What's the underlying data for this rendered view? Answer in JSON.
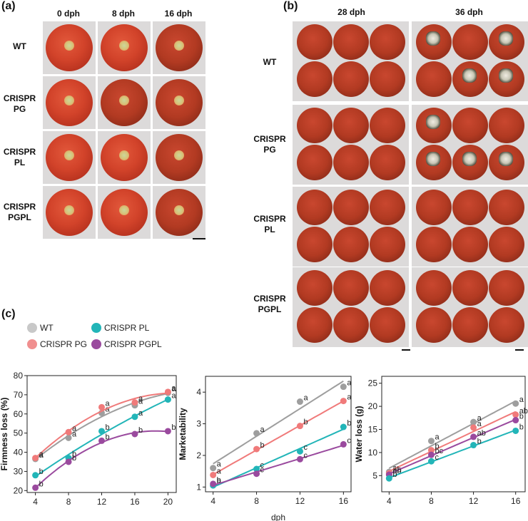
{
  "panels": {
    "a": {
      "label": "(a)",
      "columns": [
        "0 dph",
        "8 dph",
        "16 dph"
      ],
      "rows": [
        {
          "line1": "WT",
          "line2": ""
        },
        {
          "line1": "CRISPR",
          "line2": "PG"
        },
        {
          "line1": "CRISPR",
          "line2": "PL"
        },
        {
          "line1": "CRISPR",
          "line2": "PGPL"
        }
      ]
    },
    "b": {
      "label": "(b)",
      "columns": [
        "28 dph",
        "36 dph"
      ],
      "rows": [
        {
          "line1": "WT",
          "line2": ""
        },
        {
          "line1": "CRISPR",
          "line2": "PG"
        },
        {
          "line1": "CRISPR",
          "line2": "PL"
        },
        {
          "line1": "CRISPR",
          "line2": "PGPL"
        }
      ]
    },
    "c": {
      "label": "(c)",
      "shared_xlabel": "dph"
    }
  },
  "legend": [
    {
      "name": "WT",
      "color": "#9e9e9e"
    },
    {
      "name": "CRISPR PL",
      "color": "#22b5b8"
    },
    {
      "name": "CRISPR PG",
      "color": "#f07a7a"
    },
    {
      "name": "CRISPR PGPL",
      "color": "#9a4a9e"
    }
  ],
  "chart_data": [
    {
      "type": "line",
      "title": "",
      "xlabel": "",
      "ylabel": "Firmness loss (%)",
      "x": [
        4,
        8,
        12,
        16,
        20
      ],
      "xticks": [
        4,
        8,
        12,
        16,
        20
      ],
      "yticks": [
        20,
        30,
        40,
        50,
        60,
        70,
        80
      ],
      "xlim": [
        3,
        21
      ],
      "ylim": [
        19,
        80
      ],
      "fit": "quadratic",
      "series": [
        {
          "name": "WT",
          "color": "#9e9e9e",
          "values": [
            36.5,
            47.5,
            60.5,
            64.5,
            71
          ],
          "letters": [
            "a",
            "a",
            "a",
            "a",
            "a"
          ]
        },
        {
          "name": "CRISPR PG",
          "color": "#f07a7a",
          "values": [
            37,
            50.5,
            63.5,
            66,
            71.5
          ],
          "letters": [
            "a",
            "a",
            "a",
            "a",
            "a"
          ]
        },
        {
          "name": "CRISPR PL",
          "color": "#22b5b8",
          "values": [
            28,
            37,
            51,
            58.5,
            67.5
          ],
          "letters": [
            "b",
            "b",
            "b",
            "a",
            "a"
          ]
        },
        {
          "name": "CRISPR PGPL",
          "color": "#9a4a9e",
          "values": [
            21.5,
            35,
            46,
            49.5,
            51
          ],
          "letters": [
            "b",
            "b",
            "b",
            "b",
            "b"
          ]
        }
      ]
    },
    {
      "type": "line",
      "title": "",
      "xlabel": "dph",
      "ylabel": "Marketability",
      "x": [
        4,
        8,
        12,
        16
      ],
      "xticks": [
        4,
        8,
        12,
        16
      ],
      "yticks": [
        1,
        2,
        3,
        4
      ],
      "xlim": [
        3.3,
        16.7
      ],
      "ylim": [
        0.85,
        4.5
      ],
      "fit": "linear",
      "series": [
        {
          "name": "WT",
          "color": "#9e9e9e",
          "values": [
            1.6,
            2.7,
            3.7,
            4.17
          ],
          "letters": [
            "a",
            "a",
            "a",
            "a"
          ]
        },
        {
          "name": "CRISPR PG",
          "color": "#f07a7a",
          "values": [
            1.38,
            2.2,
            2.93,
            3.72
          ],
          "letters": [
            "a",
            "b",
            "b",
            "a"
          ]
        },
        {
          "name": "CRISPR PL",
          "color": "#22b5b8",
          "values": [
            1.05,
            1.57,
            2.13,
            2.9
          ],
          "letters": [
            "b",
            "c",
            "c",
            "b"
          ]
        },
        {
          "name": "CRISPR PGPL",
          "color": "#9a4a9e",
          "values": [
            1.1,
            1.42,
            1.88,
            2.35
          ],
          "letters": [
            "b",
            "c",
            "c",
            "c"
          ]
        }
      ]
    },
    {
      "type": "line",
      "title": "",
      "xlabel": "",
      "ylabel": "Water loss (g)",
      "x": [
        4,
        8,
        12,
        16
      ],
      "xticks": [
        4,
        8,
        12,
        16
      ],
      "yticks": [
        5,
        10,
        15,
        20,
        25
      ],
      "xlim": [
        3.3,
        16.9
      ],
      "ylim": [
        1.5,
        26.5
      ],
      "fit": "linear",
      "series": [
        {
          "name": "WT",
          "color": "#9e9e9e",
          "values": [
            5.8,
            12.5,
            16.6,
            20.6
          ],
          "letters": [
            "a",
            "a",
            "a",
            "a"
          ]
        },
        {
          "name": "CRISPR PG",
          "color": "#f07a7a",
          "values": [
            5.5,
            10.5,
            15.4,
            18.2
          ],
          "letters": [
            "ab",
            "b",
            "a",
            "ab"
          ]
        },
        {
          "name": "CRISPR PGPL",
          "color": "#9a4a9e",
          "values": [
            5.2,
            9.5,
            13.4,
            17
          ],
          "letters": [
            "ab",
            "bc",
            "ab",
            "b"
          ]
        },
        {
          "name": "CRISPR PL",
          "color": "#22b5b8",
          "values": [
            4.4,
            8.1,
            11.6,
            14.7
          ],
          "letters": [
            "b",
            "c",
            "b",
            "b"
          ]
        }
      ]
    }
  ]
}
